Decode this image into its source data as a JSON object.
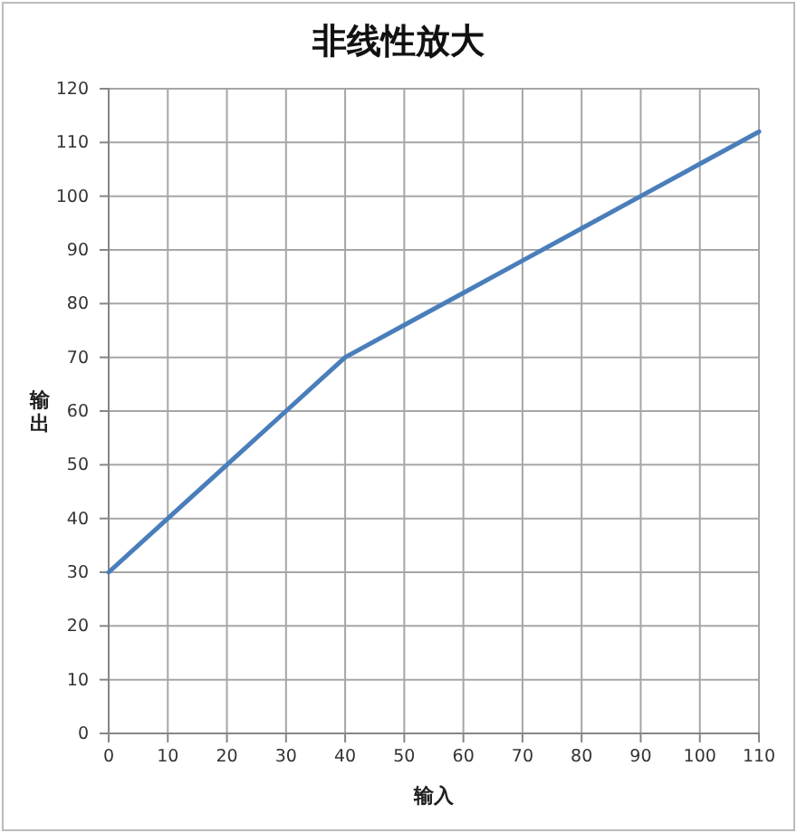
{
  "chart_data": {
    "type": "line",
    "title": "非线性放大",
    "xlabel": "输入",
    "ylabel": "输出",
    "x": [
      0,
      10,
      20,
      30,
      40,
      50,
      60,
      70,
      80,
      90,
      100,
      110
    ],
    "series": [
      {
        "color": "#4a7ebb",
        "values": [
          30,
          40,
          50,
          60,
          70,
          76,
          82,
          88,
          94,
          100,
          106,
          112
        ]
      }
    ],
    "xlim": [
      0,
      110
    ],
    "xticks": [
      0,
      10,
      20,
      30,
      40,
      50,
      60,
      70,
      80,
      90,
      100,
      110
    ],
    "ylim": [
      0,
      120
    ],
    "yticks": [
      0,
      10,
      20,
      30,
      40,
      50,
      60,
      70,
      80,
      90,
      100,
      110,
      120
    ],
    "grid": true,
    "marker": "none",
    "line_style": "solid"
  }
}
